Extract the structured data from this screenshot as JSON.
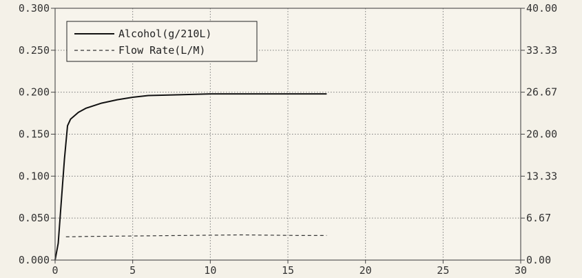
{
  "chart_data": {
    "type": "line",
    "title": "",
    "xlabel": "",
    "ylabel": "",
    "y2label": "",
    "xlim": [
      0,
      30
    ],
    "ylim": [
      0,
      0.3
    ],
    "y2lim": [
      0,
      40
    ],
    "x_ticks": [
      "0",
      "5",
      "10",
      "15",
      "20",
      "25",
      "30"
    ],
    "y_ticks": [
      "0.000",
      "0.050",
      "0.100",
      "0.150",
      "0.200",
      "0.250",
      "0.300"
    ],
    "y2_ticks": [
      "0.00",
      "6.67",
      "13.33",
      "20.00",
      "26.67",
      "33.33",
      "40.00"
    ],
    "grid": true,
    "legend_position": "top-left",
    "series": [
      {
        "name": "Alcohol(g/210L)",
        "axis": "left",
        "style": "solid",
        "color": "#111111",
        "x": [
          0,
          0.2,
          0.4,
          0.6,
          0.8,
          1.0,
          1.5,
          2.0,
          3.0,
          4.0,
          5.0,
          6.0,
          8.0,
          10.0,
          12.0,
          15.0,
          17.5
        ],
        "y": [
          0.0,
          0.02,
          0.07,
          0.12,
          0.16,
          0.168,
          0.176,
          0.181,
          0.187,
          0.191,
          0.194,
          0.196,
          0.197,
          0.198,
          0.198,
          0.198,
          0.198
        ]
      },
      {
        "name": "Flow Rate(L/M)",
        "axis": "right",
        "style": "dashed",
        "color": "#333333",
        "x": [
          0.7,
          1.0,
          2.0,
          4.0,
          6.0,
          8.0,
          10.0,
          12.0,
          14.0,
          16.0,
          17.5
        ],
        "y": [
          3.7,
          3.7,
          3.75,
          3.8,
          3.85,
          3.9,
          3.95,
          4.0,
          3.95,
          3.9,
          3.9
        ]
      }
    ]
  }
}
